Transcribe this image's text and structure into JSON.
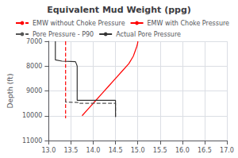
{
  "chart_data": {
    "type": "line",
    "title": "Equivalent Mud Weight (ppg)",
    "ylabel": "Depth (ft)",
    "xlim": [
      13,
      17
    ],
    "ylim": [
      11000,
      7000
    ],
    "xticks": [
      {
        "value": 13,
        "label": "13.0"
      },
      13.5,
      {
        "value": 14,
        "label": "14.0"
      },
      14.5,
      {
        "value": 15,
        "label": "15.0"
      },
      15.5,
      {
        "value": 16,
        "label": "16.0"
      },
      16.5,
      {
        "value": 17,
        "label": "17.0"
      }
    ],
    "yticks": [
      7000,
      8000,
      9000,
      10000,
      11000
    ],
    "grid": true,
    "legend": "upper right",
    "series": [
      {
        "name": "EMW without Choke Pressure",
        "color": "red",
        "line_style": "dashed",
        "x": [
          13.38,
          13.38
        ],
        "values": [
          7000,
          10100
        ]
      },
      {
        "name": "EMW with Choke Pressure",
        "color": "red",
        "line_style": "solid",
        "x": [
          15.0,
          15.0,
          14.98,
          14.9,
          14.8,
          14.65,
          14.5,
          14.35,
          14.2,
          14.05,
          13.9,
          13.75
        ],
        "values": [
          7000,
          7050,
          7200,
          7600,
          7900,
          8200,
          8500,
          8800,
          9100,
          9400,
          9700,
          10000
        ]
      },
      {
        "name": "Pore Pressure - P90",
        "color": "#555555",
        "line_style": "dashed",
        "x": [
          13.38,
          13.38,
          13.6,
          13.7,
          13.7,
          14.5,
          14.5
        ],
        "values": [
          9350,
          9450,
          9460,
          9470,
          9500,
          9500,
          10100
        ]
      },
      {
        "name": "Actual Pore Pressure",
        "color": "#333333",
        "line_style": "solid",
        "x": [
          13.15,
          13.15,
          13.3,
          13.6,
          13.6,
          13.62,
          13.64,
          13.64,
          13.64,
          14.5,
          14.5
        ],
        "values": [
          7000,
          7750,
          7800,
          7820,
          7830,
          7900,
          8000,
          8200,
          9380,
          9380,
          10050
        ]
      }
    ]
  }
}
